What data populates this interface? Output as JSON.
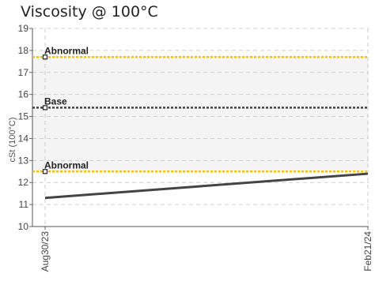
{
  "chart_data": {
    "type": "line",
    "title": "Viscosity @ 100°C",
    "ylabel": "cSt (100°C)",
    "xlabel": "",
    "ylim": [
      10,
      19
    ],
    "yticks": [
      "10",
      "11",
      "12",
      "13",
      "14",
      "15",
      "16",
      "17",
      "18",
      "19"
    ],
    "x": [
      "Aug30/23",
      "Feb21/24"
    ],
    "grid": true,
    "series": [
      {
        "values": [
          11.3,
          12.4
        ],
        "color": "#444444"
      }
    ],
    "reference_lines": [
      {
        "label": "Abnormal",
        "value": 17.7,
        "color": "#f5c400"
      },
      {
        "label": "Base",
        "value": 15.4,
        "color": "#444444"
      },
      {
        "label": "Abnormal",
        "value": 12.5,
        "color": "#f5c400"
      }
    ],
    "bands": [
      {
        "from": 17.7,
        "to": 19,
        "color": "#ffffff"
      },
      {
        "from": 12.5,
        "to": 17.7,
        "color": "#f4f4f4"
      },
      {
        "from": 10,
        "to": 12.5,
        "color": "#ffffff"
      }
    ]
  }
}
